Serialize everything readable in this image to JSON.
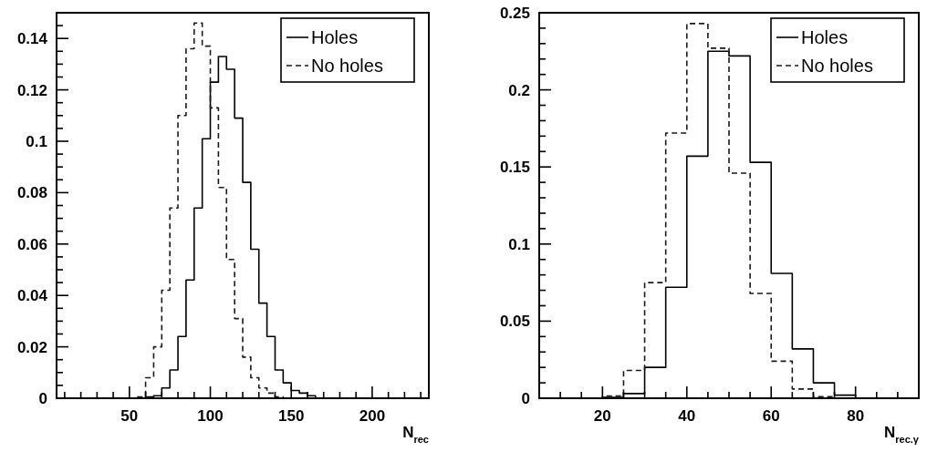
{
  "chart_data": [
    {
      "type": "histogram",
      "xlabel": "N$_{rec}$",
      "bins": [
        50,
        55,
        60,
        65,
        70,
        75,
        80,
        85,
        90,
        95,
        100,
        105,
        110,
        115,
        120,
        125,
        130,
        135,
        140,
        145,
        150,
        155,
        160,
        165
      ],
      "series": [
        {
          "name": "Holes",
          "color": "#000000",
          "line_style": "solid",
          "values": [
            0,
            0,
            0.0005,
            0.001,
            0.004,
            0.011,
            0.024,
            0.046,
            0.074,
            0.101,
            0.123,
            0.133,
            0.128,
            0.109,
            0.084,
            0.058,
            0.037,
            0.024,
            0.011,
            0.006,
            0.003,
            0.002,
            0.001
          ]
        },
        {
          "name": "No holes",
          "color": "#1a1a1a",
          "line_style": "dashed",
          "values": [
            0,
            0.0005,
            0.008,
            0.02,
            0.042,
            0.074,
            0.11,
            0.136,
            0.146,
            0.137,
            0.113,
            0.082,
            0.054,
            0.031,
            0.016,
            0.008,
            0.004,
            0.002,
            0.0005,
            0,
            0,
            0,
            0
          ]
        }
      ],
      "xlim": [
        5,
        235
      ],
      "ylim": [
        0,
        0.15
      ],
      "xticks": [
        {
          "value": 10,
          "label": null
        },
        {
          "value": 20,
          "label": null
        },
        {
          "value": 30,
          "label": null
        },
        {
          "value": 40,
          "label": null
        },
        50,
        {
          "value": 60,
          "label": null
        },
        {
          "value": 70,
          "label": null
        },
        {
          "value": 80,
          "label": null
        },
        {
          "value": 90,
          "label": null
        },
        100,
        {
          "value": 110,
          "label": null
        },
        {
          "value": 120,
          "label": null
        },
        {
          "value": 130,
          "label": null
        },
        {
          "value": 140,
          "label": null
        },
        150,
        {
          "value": 160,
          "label": null
        },
        {
          "value": 170,
          "label": null
        },
        {
          "value": 180,
          "label": null
        },
        {
          "value": 190,
          "label": null
        },
        200,
        {
          "value": 210,
          "label": null
        },
        {
          "value": 220,
          "label": null
        },
        {
          "value": 230,
          "label": null
        }
      ],
      "yticks": [
        0,
        {
          "value": 0.005,
          "label": null
        },
        {
          "value": 0.01,
          "label": null
        },
        {
          "value": 0.015,
          "label": null
        },
        0.02,
        {
          "value": 0.025,
          "label": null
        },
        {
          "value": 0.03,
          "label": null
        },
        {
          "value": 0.035,
          "label": null
        },
        0.04,
        {
          "value": 0.045,
          "label": null
        },
        {
          "value": 0.05,
          "label": null
        },
        {
          "value": 0.055,
          "label": null
        },
        0.06,
        {
          "value": 0.065,
          "label": null
        },
        {
          "value": 0.07,
          "label": null
        },
        {
          "value": 0.075,
          "label": null
        },
        0.08,
        {
          "value": 0.085,
          "label": null
        },
        {
          "value": 0.09,
          "label": null
        },
        {
          "value": 0.095,
          "label": null
        },
        {
          "value": 0.1,
          "label": "0.1"
        },
        {
          "value": 0.105,
          "label": null
        },
        {
          "value": 0.11,
          "label": null
        },
        {
          "value": 0.115,
          "label": null
        },
        0.12,
        {
          "value": 0.125,
          "label": null
        },
        {
          "value": 0.13,
          "label": null
        },
        {
          "value": 0.135,
          "label": null
        },
        0.14,
        {
          "value": 0.145,
          "label": null
        }
      ],
      "legend": "top right",
      "grid": false
    },
    {
      "type": "histogram",
      "xlabel": "N$_{rec.γ}$",
      "bins": [
        15,
        20,
        25,
        30,
        35,
        40,
        45,
        50,
        55,
        60,
        65,
        70,
        75,
        80,
        85
      ],
      "series": [
        {
          "name": "Holes",
          "color": "#000000",
          "line_style": "solid",
          "values": [
            0,
            0.0005,
            0.003,
            0.02,
            0.072,
            0.157,
            0.225,
            0.222,
            0.153,
            0.081,
            0.032,
            0.01,
            0.002,
            0
          ]
        },
        {
          "name": "No holes",
          "color": "#1a1a1a",
          "line_style": "dashed",
          "values": [
            0,
            0.0015,
            0.018,
            0.075,
            0.172,
            0.243,
            0.227,
            0.146,
            0.068,
            0.024,
            0.006,
            0.001,
            0,
            0
          ]
        }
      ],
      "xlim": [
        5,
        95
      ],
      "ylim": [
        0,
        0.25
      ],
      "xticks": [
        {
          "value": 10,
          "label": null
        },
        {
          "value": 15,
          "label": null
        },
        20,
        {
          "value": 25,
          "label": null
        },
        {
          "value": 30,
          "label": null
        },
        {
          "value": 35,
          "label": null
        },
        40,
        {
          "value": 45,
          "label": null
        },
        {
          "value": 50,
          "label": null
        },
        {
          "value": 55,
          "label": null
        },
        60,
        {
          "value": 65,
          "label": null
        },
        {
          "value": 70,
          "label": null
        },
        {
          "value": 75,
          "label": null
        },
        80,
        {
          "value": 85,
          "label": null
        },
        {
          "value": 90,
          "label": null
        }
      ],
      "yticks": [
        0,
        {
          "value": 0.01,
          "label": null
        },
        {
          "value": 0.02,
          "label": null
        },
        {
          "value": 0.03,
          "label": null
        },
        {
          "value": 0.04,
          "label": null
        },
        0.05,
        {
          "value": 0.06,
          "label": null
        },
        {
          "value": 0.07,
          "label": null
        },
        {
          "value": 0.08,
          "label": null
        },
        {
          "value": 0.09,
          "label": null
        },
        {
          "value": 0.1,
          "label": "0.1"
        },
        {
          "value": 0.11,
          "label": null
        },
        {
          "value": 0.12,
          "label": null
        },
        {
          "value": 0.13,
          "label": null
        },
        {
          "value": 0.14,
          "label": null
        },
        0.15,
        {
          "value": 0.16,
          "label": null
        },
        {
          "value": 0.17,
          "label": null
        },
        {
          "value": 0.18,
          "label": null
        },
        {
          "value": 0.19,
          "label": null
        },
        {
          "value": 0.2,
          "label": "0.2"
        },
        {
          "value": 0.21,
          "label": null
        },
        {
          "value": 0.22,
          "label": null
        },
        {
          "value": 0.23,
          "label": null
        },
        {
          "value": 0.24,
          "label": null
        },
        0.25
      ],
      "legend": "top right",
      "grid": false
    }
  ]
}
